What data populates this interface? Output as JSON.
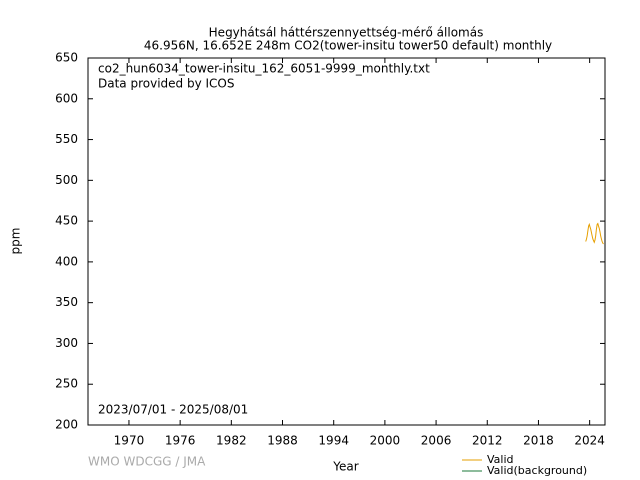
{
  "chart_data": {
    "type": "line",
    "title": "Hegyhátsál háttérszennyettség-mérő állomás",
    "subtitle": "46.956N, 16.652E 248m    CO2(tower-insitu tower50 default) monthly",
    "xlabel": "Year",
    "ylabel": "ppm",
    "annotations": [
      "co2_hun6034_tower-insitu_162_6051-9999_monthly.txt",
      "Data provided by ICOS",
      "2023/07/01 - 2025/08/01"
    ],
    "credit": "WMO WDCGG / JMA",
    "x": [
      2023.54,
      2023.63,
      2023.71,
      2023.79,
      2023.88,
      2023.96,
      2024.04,
      2024.13,
      2024.21,
      2024.29,
      2024.38,
      2024.46,
      2024.54,
      2024.63,
      2024.71,
      2024.79,
      2024.88,
      2024.96,
      2025.04,
      2025.13,
      2025.21,
      2025.29,
      2025.38,
      2025.46,
      2025.54,
      2025.63
    ],
    "series": [
      {
        "name": "Valid",
        "color": "#e69f00",
        "values": [
          425,
          428,
          432,
          438,
          444,
          446,
          443,
          440,
          436,
          432,
          428,
          426,
          424,
          427,
          432,
          440,
          446,
          447,
          444,
          441,
          437,
          432,
          428,
          425,
          423,
          422
        ]
      },
      {
        "name": "Valid(background)",
        "color": "#1b7a3a",
        "values": [
          null,
          null,
          null,
          null,
          null,
          null,
          null,
          null,
          null,
          null,
          null,
          null,
          null,
          null,
          null,
          null,
          null,
          null,
          null,
          null,
          null,
          null,
          null,
          null,
          null,
          null
        ]
      }
    ],
    "xlim": [
      1965.2,
      2025.8
    ],
    "xticks": [
      1970,
      1976,
      1982,
      1988,
      1994,
      2000,
      2006,
      2012,
      2018,
      2024
    ],
    "ylim": [
      200,
      650
    ],
    "yticks": [
      200,
      250,
      300,
      350,
      400,
      450,
      500,
      550,
      600,
      650
    ],
    "grid": false
  }
}
